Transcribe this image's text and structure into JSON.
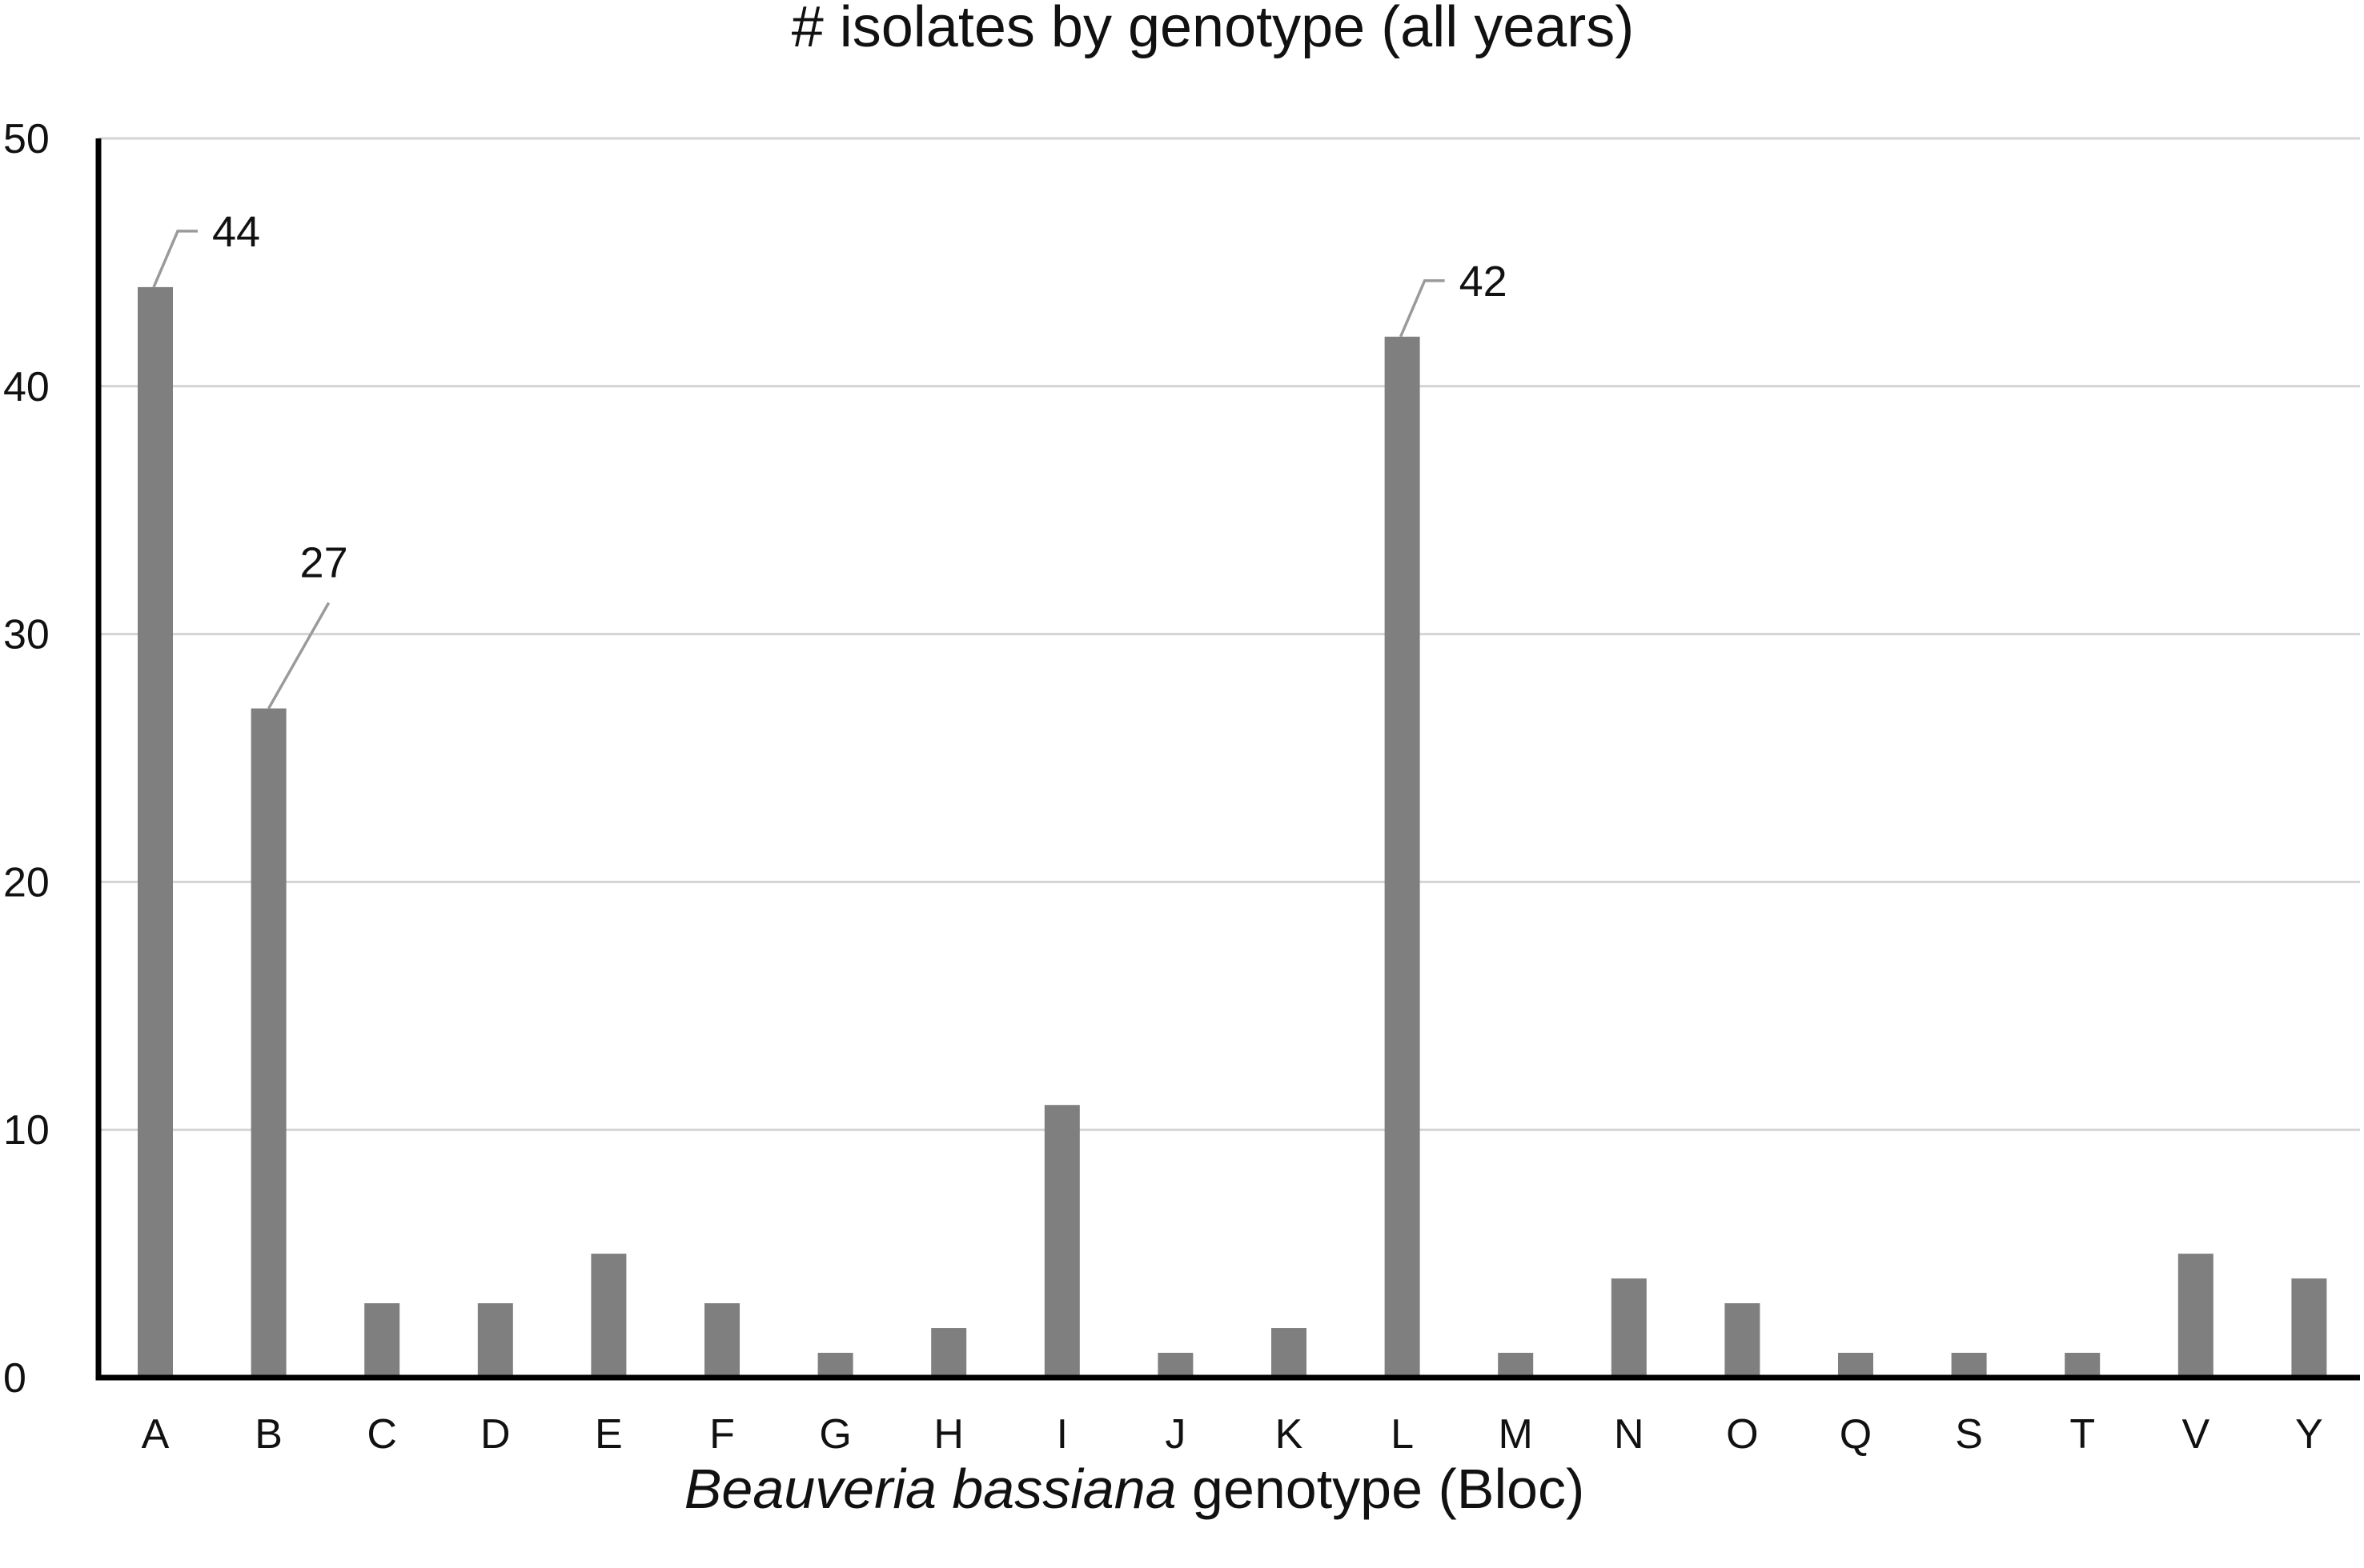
{
  "chart_data": {
    "type": "bar",
    "title": "# isolates by genotype (all years)",
    "xlabel": {
      "italic": "Beauveria bassiana",
      "rest": " genotype (Bloc)"
    },
    "ylabel": "",
    "ylim": [
      0,
      50
    ],
    "yticks": [
      0,
      10,
      20,
      30,
      40,
      50
    ],
    "grid": true,
    "legend": "none",
    "bar_color": "#7f7f7f",
    "categories": [
      "A",
      "B",
      "C",
      "D",
      "E",
      "F",
      "G",
      "H",
      "I",
      "J",
      "K",
      "L",
      "M",
      "N",
      "O",
      "Q",
      "S",
      "T",
      "V",
      "Y"
    ],
    "values": [
      44,
      27,
      3,
      3,
      5,
      3,
      1,
      2,
      11,
      1,
      2,
      42,
      1,
      4,
      3,
      1,
      1,
      1,
      5,
      4
    ],
    "data_labels": [
      {
        "category": "A",
        "text": "44"
      },
      {
        "category": "B",
        "text": "27"
      },
      {
        "category": "L",
        "text": "42"
      }
    ]
  }
}
